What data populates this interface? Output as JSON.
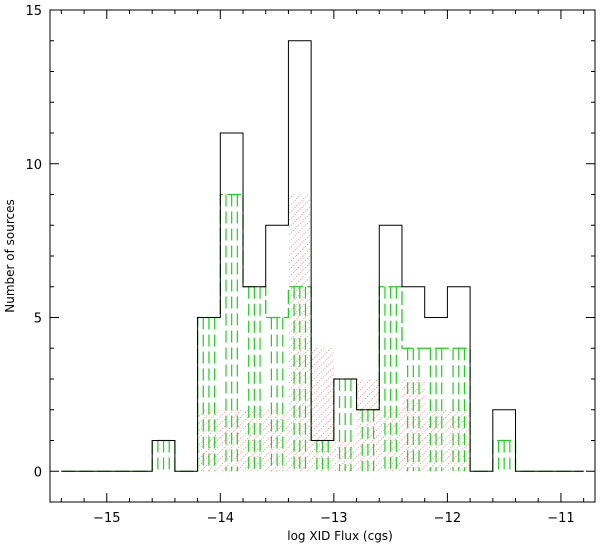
{
  "chart_data": {
    "type": "histogram",
    "xlabel": "log XID Flux (cgs)",
    "ylabel": "Number of sources",
    "xlim": [
      -15.5,
      -10.7
    ],
    "ylim": [
      -1,
      15
    ],
    "xticks": [
      -15,
      -14,
      -13,
      -12,
      -11
    ],
    "xtick_labels": [
      "−15",
      "−14",
      "−13",
      "−12",
      "−11"
    ],
    "yticks": [
      0,
      5,
      10,
      15
    ],
    "ytick_labels": [
      "0",
      "5",
      "10",
      "15"
    ],
    "bin_width": 0.2,
    "bin_starts": [
      -15.4,
      -15.2,
      -15.0,
      -14.8,
      -14.6,
      -14.4,
      -14.2,
      -14.0,
      -13.8,
      -13.6,
      -13.4,
      -13.2,
      -13.0,
      -12.8,
      -12.6,
      -12.4,
      -12.2,
      -12.0,
      -11.8,
      -11.6,
      -11.4,
      -11.2,
      -11.0
    ],
    "series": [
      {
        "style": "solid",
        "color": "#000000",
        "values": [
          0,
          0,
          0,
          0,
          1,
          0,
          5,
          11,
          6,
          8,
          14,
          1,
          3,
          2,
          8,
          6,
          5,
          6,
          0,
          2,
          0,
          0,
          0
        ]
      },
      {
        "style": "dashed",
        "color": "#22cc22",
        "values": [
          0,
          0,
          0,
          0,
          1,
          0,
          5,
          9,
          6,
          5,
          6,
          1,
          3,
          2,
          6,
          4,
          4,
          4,
          0,
          1,
          0,
          0,
          0
        ]
      },
      {
        "style": "hatched",
        "color": "#ee3333",
        "values": [
          0,
          0,
          0,
          0,
          0,
          0,
          2,
          2,
          2,
          2,
          9,
          4,
          1,
          3,
          2,
          3,
          2,
          2,
          0,
          0,
          0,
          0,
          0
        ]
      }
    ]
  }
}
